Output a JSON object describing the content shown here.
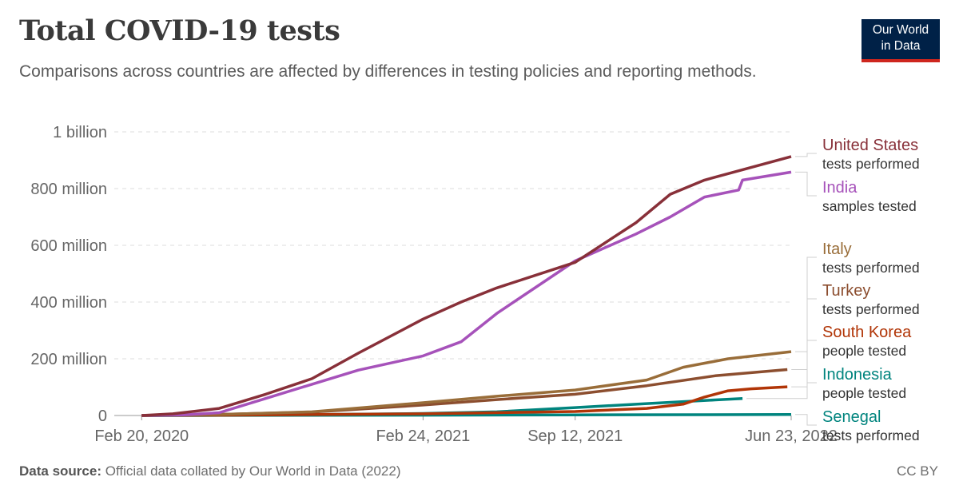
{
  "header": {
    "title": "Total COVID-19 tests",
    "subtitle": "Comparisons across countries are affected by differences in testing policies and reporting methods.",
    "logo_line1": "Our World",
    "logo_line2": "in Data"
  },
  "footer": {
    "source_label": "Data source:",
    "source_text": "Official data collated by Our World in Data (2022)",
    "license": "CC BY"
  },
  "chart_data": {
    "type": "line",
    "title": "Total COVID-19 tests",
    "xlabel": "",
    "ylabel": "",
    "x_start": "2020-01-15",
    "x_end": "2022-06-23",
    "ylim": [
      0,
      1000000000
    ],
    "y_ticks": [
      {
        "value": 0,
        "label": "0"
      },
      {
        "value": 200000000,
        "label": "200 million"
      },
      {
        "value": 400000000,
        "label": "400 million"
      },
      {
        "value": 600000000,
        "label": "600 million"
      },
      {
        "value": 800000000,
        "label": "800 million"
      },
      {
        "value": 1000000000,
        "label": "1 billion"
      }
    ],
    "x_ticks": [
      {
        "date": "2020-02-20",
        "label": "Feb 20, 2020"
      },
      {
        "date": "2021-02-24",
        "label": "Feb 24, 2021"
      },
      {
        "date": "2021-09-12",
        "label": "Sep 12, 2021"
      },
      {
        "date": "2022-06-23",
        "label": "Jun 23, 2022"
      }
    ],
    "grid": "horizontal dashed",
    "legend": "right, line labels",
    "series": [
      {
        "name": "Senegal",
        "note": "tests performed",
        "color": "#00847e",
        "points": [
          [
            "2020-02-20",
            0
          ],
          [
            "2021-02-24",
            1000000
          ],
          [
            "2021-09-12",
            2200000
          ],
          [
            "2022-06-23",
            3500000
          ]
        ]
      },
      {
        "name": "Indonesia",
        "note": "people tested",
        "color": "#00847e",
        "points": [
          [
            "2020-02-20",
            0
          ],
          [
            "2020-06-01",
            700000
          ],
          [
            "2020-10-01",
            3000000
          ],
          [
            "2021-02-24",
            7000000
          ],
          [
            "2021-06-01",
            13000000
          ],
          [
            "2021-09-12",
            28000000
          ],
          [
            "2021-12-15",
            42000000
          ],
          [
            "2022-03-15",
            55000000
          ],
          [
            "2022-04-20",
            60000000
          ]
        ]
      },
      {
        "name": "South Korea",
        "note": "people tested",
        "color": "#b13507",
        "points": [
          [
            "2020-02-20",
            0
          ],
          [
            "2020-06-01",
            1000000
          ],
          [
            "2021-02-24",
            6000000
          ],
          [
            "2021-09-12",
            14000000
          ],
          [
            "2021-12-15",
            25000000
          ],
          [
            "2022-02-01",
            40000000
          ],
          [
            "2022-03-01",
            65000000
          ],
          [
            "2022-04-01",
            87000000
          ],
          [
            "2022-05-01",
            94000000
          ],
          [
            "2022-06-18",
            101000000
          ]
        ]
      },
      {
        "name": "Turkey",
        "note": "tests performed",
        "color": "#8c4e2f",
        "points": [
          [
            "2020-02-20",
            0
          ],
          [
            "2020-06-01",
            4000000
          ],
          [
            "2020-10-01",
            12000000
          ],
          [
            "2021-02-24",
            37000000
          ],
          [
            "2021-06-01",
            56000000
          ],
          [
            "2021-09-12",
            75000000
          ],
          [
            "2021-12-15",
            105000000
          ],
          [
            "2022-03-15",
            140000000
          ],
          [
            "2022-06-18",
            162000000
          ]
        ]
      },
      {
        "name": "Italy",
        "note": "tests performed",
        "color": "#996d39",
        "points": [
          [
            "2020-02-20",
            0
          ],
          [
            "2020-06-01",
            3500000
          ],
          [
            "2020-10-01",
            13000000
          ],
          [
            "2021-02-24",
            45000000
          ],
          [
            "2021-06-01",
            68000000
          ],
          [
            "2021-09-12",
            90000000
          ],
          [
            "2021-12-15",
            125000000
          ],
          [
            "2022-02-01",
            170000000
          ],
          [
            "2022-04-01",
            200000000
          ],
          [
            "2022-06-23",
            225000000
          ]
        ]
      },
      {
        "name": "India",
        "note": "samples tested",
        "color": "#a652ba",
        "points": [
          [
            "2020-02-20",
            0
          ],
          [
            "2020-04-15",
            2000000
          ],
          [
            "2020-06-01",
            10000000
          ],
          [
            "2020-08-01",
            60000000
          ],
          [
            "2020-10-01",
            110000000
          ],
          [
            "2020-12-01",
            160000000
          ],
          [
            "2021-02-24",
            210000000
          ],
          [
            "2021-04-15",
            260000000
          ],
          [
            "2021-06-01",
            360000000
          ],
          [
            "2021-09-12",
            545000000
          ],
          [
            "2021-12-01",
            640000000
          ],
          [
            "2022-01-15",
            700000000
          ],
          [
            "2022-03-01",
            770000000
          ],
          [
            "2022-04-15",
            795000000
          ],
          [
            "2022-04-20",
            830000000
          ],
          [
            "2022-06-23",
            858000000
          ]
        ]
      },
      {
        "name": "United States",
        "note": "tests performed",
        "color": "#883039",
        "points": [
          [
            "2020-02-20",
            0
          ],
          [
            "2020-04-01",
            6000000
          ],
          [
            "2020-06-01",
            25000000
          ],
          [
            "2020-08-01",
            75000000
          ],
          [
            "2020-10-01",
            130000000
          ],
          [
            "2020-12-01",
            220000000
          ],
          [
            "2021-02-24",
            340000000
          ],
          [
            "2021-04-15",
            400000000
          ],
          [
            "2021-06-01",
            450000000
          ],
          [
            "2021-09-12",
            540000000
          ],
          [
            "2021-12-01",
            680000000
          ],
          [
            "2022-01-15",
            780000000
          ],
          [
            "2022-03-01",
            830000000
          ],
          [
            "2022-06-23",
            913000000
          ]
        ]
      }
    ]
  }
}
